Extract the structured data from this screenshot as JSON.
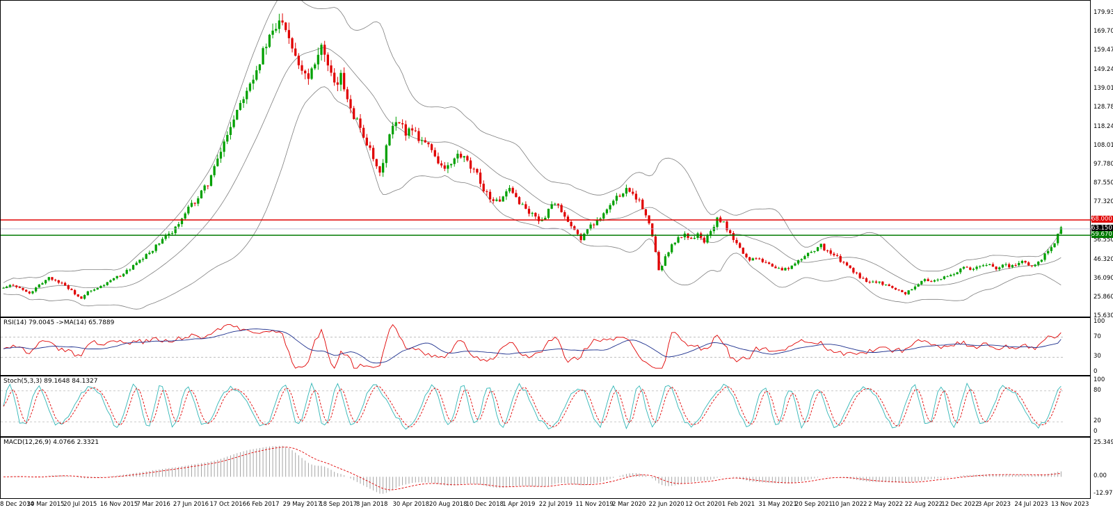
{
  "chart_data": [
    {
      "type": "candlestick",
      "title": "",
      "price_axis_ticks": [
        "179.930",
        "169.700",
        "159.470",
        "149.240",
        "139.010",
        "128.780",
        "118.240",
        "108.010",
        "97.780",
        "87.550",
        "77.320",
        "66.780",
        "56.550",
        "46.320",
        "36.090",
        "25.860",
        "15.630"
      ],
      "date_ticks": [
        "8 Dec 2014",
        "30 Mar 2015",
        "20 Jul 2015",
        "16 Nov 2015",
        "7 Mar 2016",
        "27 Jun 2016",
        "17 Oct 2016",
        "6 Feb 2017",
        "29 May 2017",
        "18 Sep 2017",
        "8 Jan 2018",
        "30 Apr 2018",
        "20 Aug 2018",
        "10 Dec 2018",
        "1 Apr 2019",
        "22 Jul 2019",
        "11 Nov 2019",
        "2 Mar 2020",
        "22 Jun 2020",
        "12 Oct 2020",
        "1 Feb 2021",
        "31 May 2021",
        "20 Sep 2021",
        "10 Jan 2022",
        "2 May 2022",
        "22 Aug 2022",
        "12 Dec 2022",
        "3 Apr 2023",
        "24 Jul 2023",
        "13 Nov 2023"
      ],
      "ylim": [
        15.63,
        183
      ],
      "horizontal_levels": [
        {
          "value": 68.0,
          "label": "68.000",
          "color": "#e00000"
        },
        {
          "value": 59.67,
          "label": "59.670",
          "color": "#007a00"
        }
      ],
      "current_price": {
        "value": 63.15,
        "label": "63.150"
      },
      "close_path": [
        [
          0,
          31
        ],
        [
          3,
          33
        ],
        [
          6,
          30
        ],
        [
          8,
          28
        ],
        [
          10,
          31
        ],
        [
          12,
          34
        ],
        [
          14,
          37
        ],
        [
          16,
          35
        ],
        [
          18,
          34
        ],
        [
          20,
          31
        ],
        [
          22,
          28
        ],
        [
          24,
          25
        ],
        [
          26,
          29
        ],
        [
          28,
          30
        ],
        [
          31,
          33
        ],
        [
          34,
          36
        ],
        [
          37,
          39
        ],
        [
          40,
          43
        ],
        [
          43,
          47
        ],
        [
          46,
          52
        ],
        [
          49,
          57
        ],
        [
          52,
          62
        ],
        [
          55,
          68
        ],
        [
          57,
          74
        ],
        [
          60,
          80
        ],
        [
          63,
          88
        ],
        [
          66,
          100
        ],
        [
          69,
          115
        ],
        [
          72,
          128
        ],
        [
          75,
          140
        ],
        [
          78,
          150
        ],
        [
          81,
          163
        ],
        [
          84,
          172
        ],
        [
          86,
          178
        ],
        [
          88,
          168
        ],
        [
          90,
          158
        ],
        [
          92,
          150
        ],
        [
          94,
          146
        ],
        [
          96,
          155
        ],
        [
          98,
          163
        ],
        [
          100,
          150
        ],
        [
          102,
          140
        ],
        [
          104,
          145
        ],
        [
          106,
          135
        ],
        [
          108,
          125
        ],
        [
          110,
          118
        ],
        [
          112,
          110
        ],
        [
          114,
          100
        ],
        [
          116,
          92
        ],
        [
          118,
          108
        ],
        [
          120,
          118
        ],
        [
          122,
          120
        ],
        [
          124,
          116
        ],
        [
          126,
          118
        ],
        [
          128,
          113
        ],
        [
          130,
          110
        ],
        [
          132,
          106
        ],
        [
          134,
          100
        ],
        [
          136,
          95
        ],
        [
          138,
          98
        ],
        [
          140,
          103
        ],
        [
          142,
          101
        ],
        [
          144,
          96
        ],
        [
          146,
          92
        ],
        [
          148,
          85
        ],
        [
          150,
          80
        ],
        [
          152,
          78
        ],
        [
          154,
          80
        ],
        [
          156,
          84
        ],
        [
          158,
          80
        ],
        [
          160,
          76
        ],
        [
          162,
          72
        ],
        [
          164,
          70
        ],
        [
          166,
          67
        ],
        [
          168,
          74
        ],
        [
          170,
          78
        ],
        [
          172,
          72
        ],
        [
          174,
          66
        ],
        [
          176,
          62
        ],
        [
          178,
          58
        ],
        [
          180,
          63
        ],
        [
          182,
          66
        ],
        [
          184,
          70
        ],
        [
          186,
          74
        ],
        [
          188,
          78
        ],
        [
          190,
          82
        ],
        [
          192,
          85
        ],
        [
          194,
          83
        ],
        [
          196,
          78
        ],
        [
          198,
          70
        ],
        [
          200,
          60
        ],
        [
          202,
          40
        ],
        [
          204,
          48
        ],
        [
          206,
          54
        ],
        [
          208,
          58
        ],
        [
          210,
          60
        ],
        [
          212,
          58
        ],
        [
          214,
          60
        ],
        [
          216,
          56
        ],
        [
          218,
          62
        ],
        [
          220,
          68
        ],
        [
          222,
          66
        ],
        [
          224,
          60
        ],
        [
          226,
          55
        ],
        [
          228,
          50
        ],
        [
          230,
          46
        ],
        [
          232,
          48
        ],
        [
          234,
          46
        ],
        [
          236,
          44
        ],
        [
          238,
          42
        ],
        [
          240,
          41
        ],
        [
          242,
          42
        ],
        [
          244,
          44
        ],
        [
          246,
          47
        ],
        [
          248,
          50
        ],
        [
          250,
          52
        ],
        [
          252,
          54
        ],
        [
          254,
          51
        ],
        [
          256,
          49
        ],
        [
          258,
          46
        ],
        [
          260,
          43
        ],
        [
          262,
          40
        ],
        [
          264,
          37
        ],
        [
          266,
          35
        ],
        [
          268,
          35
        ],
        [
          270,
          34
        ],
        [
          272,
          33
        ],
        [
          274,
          31
        ],
        [
          276,
          30
        ],
        [
          278,
          28
        ],
        [
          280,
          31
        ],
        [
          282,
          33
        ],
        [
          284,
          36
        ],
        [
          286,
          35
        ],
        [
          288,
          35
        ],
        [
          290,
          37
        ],
        [
          292,
          38
        ],
        [
          294,
          40
        ],
        [
          296,
          42
        ],
        [
          298,
          41
        ],
        [
          300,
          42
        ],
        [
          302,
          43
        ],
        [
          304,
          44
        ],
        [
          306,
          42
        ],
        [
          308,
          44
        ],
        [
          310,
          43
        ],
        [
          312,
          44
        ],
        [
          314,
          45
        ],
        [
          316,
          44
        ],
        [
          318,
          43
        ],
        [
          320,
          47
        ],
        [
          322,
          52
        ],
        [
          324,
          56
        ],
        [
          326,
          63.15
        ]
      ],
      "bollinger_mid_note": "20-period average shown as thin line"
    },
    {
      "type": "line",
      "indicator": "RSI",
      "label": "RSI(14) 79.0045 ->MA(14) 65.7889",
      "rsi": 79.0045,
      "ma": 65.7889,
      "levels": [
        70,
        30
      ],
      "axis_ticks": [
        "100",
        "70",
        "30",
        "0"
      ],
      "ylim": [
        0,
        100
      ]
    },
    {
      "type": "line",
      "indicator": "Stochastic",
      "label": "Stoch(5,3,3) 89.1648 84.1327",
      "main": 89.1648,
      "signal": 84.1327,
      "levels": [
        80,
        20
      ],
      "axis_ticks": [
        "100",
        "80",
        "20",
        "0"
      ],
      "ylim": [
        0,
        100
      ]
    },
    {
      "type": "bar",
      "indicator": "MACD",
      "label": "MACD(12,26,9) 4.0766 2.3321",
      "macd": 4.0766,
      "signal": 2.3321,
      "axis_ticks": [
        "25.3493",
        "0.00",
        "-12.9785"
      ],
      "ylim": [
        -12.9785,
        25.3493
      ]
    }
  ],
  "colors": {
    "bull": "#00a000",
    "bear": "#e00000",
    "band": "#7f7f7f",
    "rsi": "#e00000",
    "rsi_ma": "#1a2d8c",
    "stoch_main": "#2fb5b5",
    "stoch_signal": "#e00000",
    "macd_hist": "#9a9a9a",
    "macd_signal": "#e00000"
  }
}
